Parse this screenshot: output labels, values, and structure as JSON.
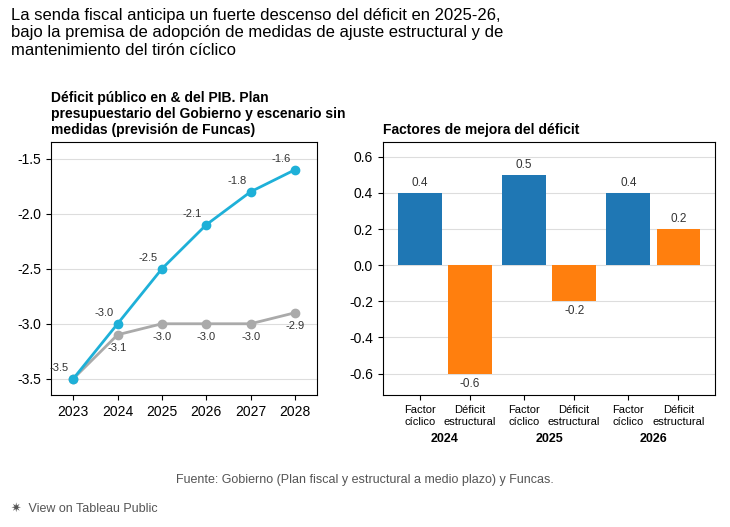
{
  "title": "La senda fiscal anticipa un fuerte descenso del déficit en 2025-26,\nbajo la premisa de adopción de medidas de ajuste estructural y de\nmantenimiento del tirón cíclico",
  "annotations": [
    "Fuente: Gobierno (Plan fiscal y estructural a medio plazo) y Funcas.",
    "✷  View on Tableau Public"
  ],
  "chart_data": [
    {
      "type": "line",
      "title": "Déficit público en & del PIB. Plan\npresupuestario del Gobierno y escenario sin\nmedidas (previsión de Funcas)",
      "categories": [
        "2023",
        "2024",
        "2025",
        "2026",
        "2027",
        "2028"
      ],
      "series": [
        {
          "color": "#AAAAAA",
          "marker": "circle",
          "values": [
            -3.5,
            -3.1,
            -3.0,
            -3.0,
            -3.0,
            -2.9
          ]
        },
        {
          "color": "#1EB0D8",
          "marker": "circle",
          "values": [
            -3.5,
            -3.0,
            -2.5,
            -2.1,
            -1.8,
            -1.6
          ],
          "value_labels": [
            null,
            "-3.0",
            "-2.5",
            "-2.1",
            "-1.8",
            "-1.6"
          ]
        }
      ],
      "ylim": [
        -3.65,
        -1.35
      ],
      "yticks": [
        -3.5,
        -3.0,
        -2.5,
        -2.0,
        -1.5
      ],
      "grid": true,
      "data_labels": true
    },
    {
      "type": "bar",
      "title": "Factores de mejora del déficit",
      "categories": [
        "2024",
        "2025",
        "2026"
      ],
      "series": [
        {
          "name": "Factor\ncíclico",
          "values": [
            0.4,
            0.5,
            0.4
          ]
        },
        {
          "name": "Déficit\nestructural",
          "values": [
            -0.6,
            -0.2,
            0.2
          ]
        }
      ],
      "ylim": [
        -0.72,
        0.68
      ],
      "yticks": [
        -0.6,
        -0.4,
        -0.2,
        0.0,
        0.2,
        0.4,
        0.6
      ],
      "grid": true,
      "data_labels": true
    }
  ]
}
